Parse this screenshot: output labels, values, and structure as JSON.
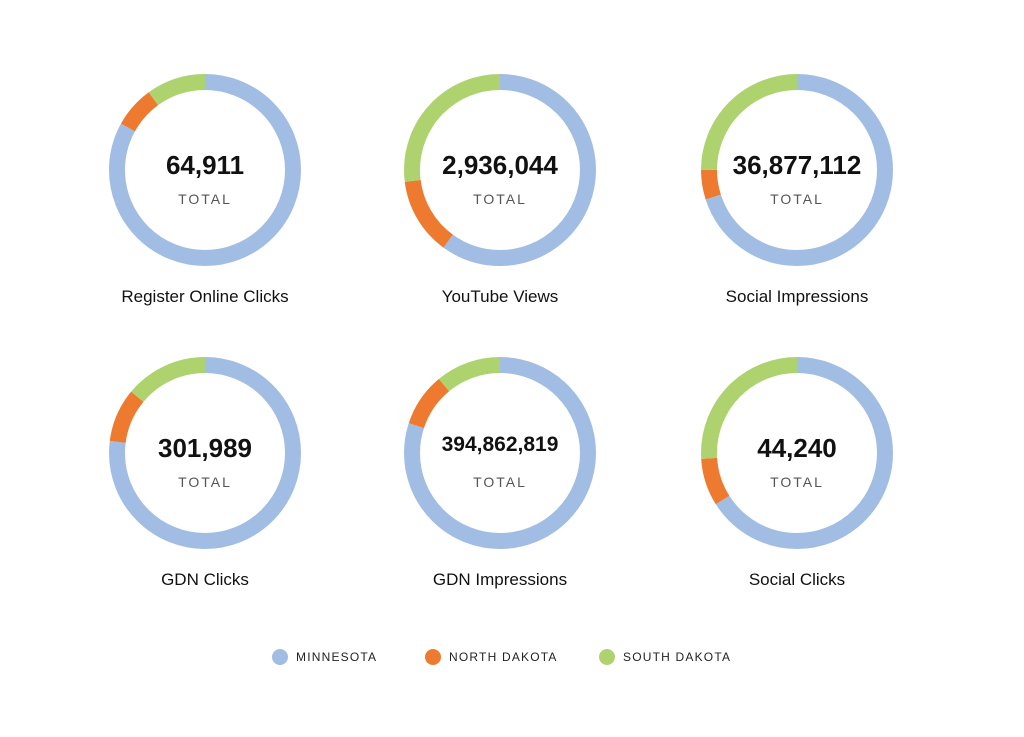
{
  "chart_data": {
    "type": "donut",
    "series_names": [
      "MINNESOTA",
      "NORTH DAKOTA",
      "SOUTH DAKOTA"
    ],
    "colors": {
      "MINNESOTA": "#a1bde3",
      "NORTH DAKOTA": "#ee7a30",
      "SOUTH DAKOTA": "#aed36e"
    },
    "center_sublabel": "TOTAL",
    "charts": [
      {
        "title": "Register Online Clicks",
        "total": "64,911",
        "shares": [
          0.83,
          0.07,
          0.1
        ]
      },
      {
        "title": "YouTube Views",
        "total": "2,936,044",
        "shares": [
          0.6,
          0.13,
          0.27
        ]
      },
      {
        "title": "Social Impressions",
        "total": "36,877,112",
        "shares": [
          0.7,
          0.05,
          0.25
        ]
      },
      {
        "title": "GDN Clicks",
        "total": "301,989",
        "shares": [
          0.77,
          0.09,
          0.14
        ]
      },
      {
        "title": "GDN Impressions",
        "total": "394,862,819",
        "shares": [
          0.8,
          0.09,
          0.11
        ]
      },
      {
        "title": "Social Clicks",
        "total": "44,240",
        "shares": [
          0.66,
          0.08,
          0.26
        ]
      }
    ],
    "legend_position": "bottom"
  }
}
